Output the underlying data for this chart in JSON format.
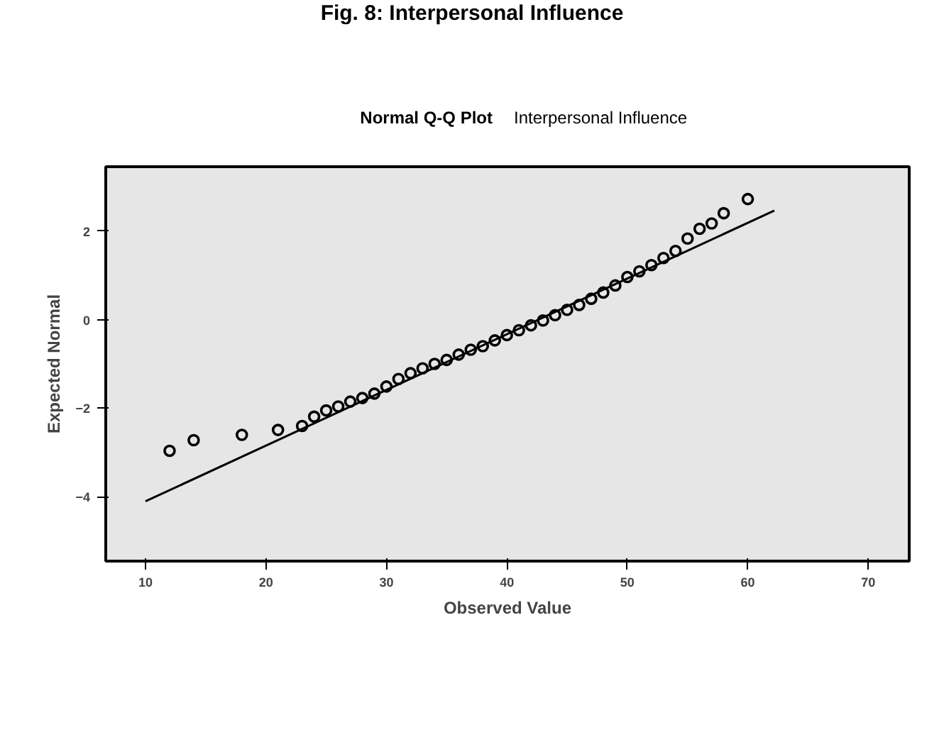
{
  "chart_data": {
    "type": "scatter",
    "title": "Normal Q-Q Plot",
    "subtitle": "Interpersonal Influence",
    "annotations": [
      "Fig. 8: Interpersonal Influence"
    ],
    "xlabel": "Observed Value",
    "ylabel": "Expected Normal",
    "xlim": [
      6.7,
      73.4
    ],
    "ylim": [
      -5.45,
      3.45
    ],
    "xticks": [
      10,
      20,
      30,
      40,
      50,
      60,
      70
    ],
    "yticks": [
      -4,
      -2,
      0,
      2
    ],
    "grid": false,
    "marker": "circle",
    "series": [
      {
        "color": "#000000",
        "x": [
          12,
          14,
          18,
          21,
          23,
          24,
          25,
          26,
          27,
          28,
          29,
          30,
          31,
          32,
          33,
          34,
          35,
          36,
          37,
          38,
          39,
          40,
          41,
          42,
          43,
          44,
          45,
          46,
          47,
          48,
          49,
          50,
          51,
          52,
          53,
          54,
          55,
          56,
          57,
          58,
          60
        ],
        "values": [
          -2.96,
          -2.72,
          -2.6,
          -2.49,
          -2.4,
          -2.19,
          -2.05,
          -1.96,
          -1.85,
          -1.77,
          -1.67,
          -1.51,
          -1.34,
          -1.21,
          -1.1,
          -1.0,
          -0.91,
          -0.79,
          -0.68,
          -0.6,
          -0.47,
          -0.35,
          -0.24,
          -0.13,
          -0.02,
          0.1,
          0.22,
          0.33,
          0.47,
          0.61,
          0.77,
          0.96,
          1.09,
          1.23,
          1.39,
          1.55,
          1.83,
          2.05,
          2.17,
          2.4,
          2.72
        ]
      },
      {
        "type": "line",
        "marker": "none",
        "color": "#000000",
        "x": [
          10,
          62.2
        ],
        "values": [
          -4.1,
          2.46
        ]
      }
    ]
  }
}
